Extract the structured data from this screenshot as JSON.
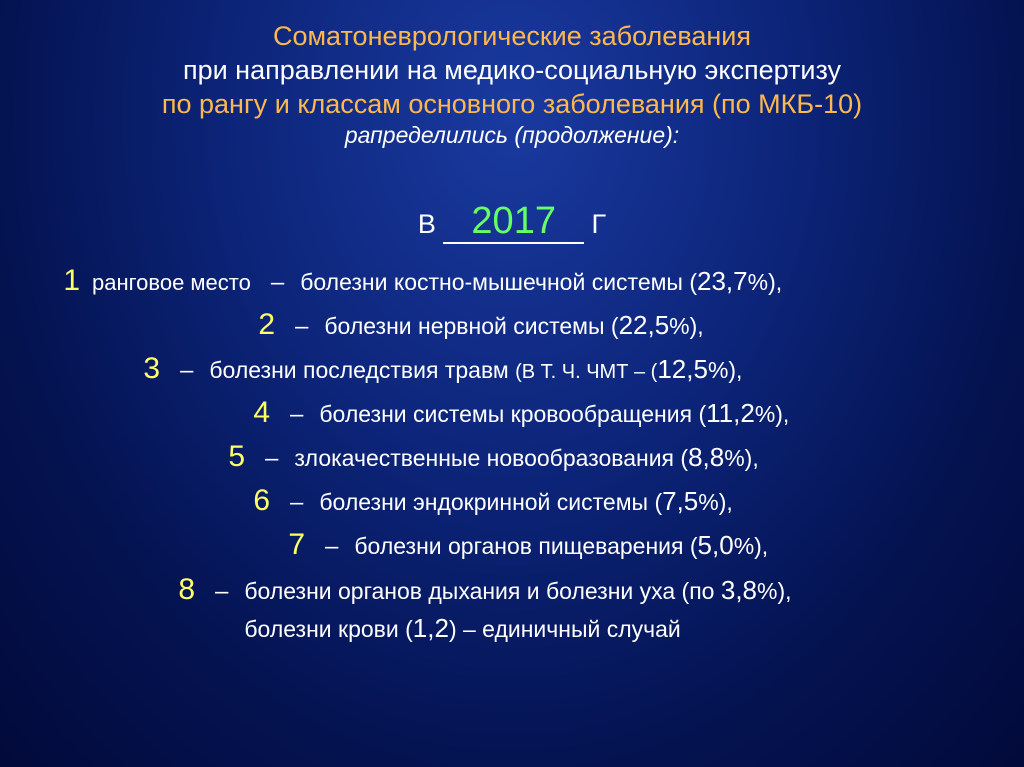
{
  "title": {
    "line1": "Соматоневрологические заболевания",
    "line2": "при направлении на медико-социальную экспертизу",
    "line3": "по рангу и классам основного заболевания (по МКБ-10)",
    "line4": "рапределились (продолжение):"
  },
  "year_prefix": "В",
  "year": "2017",
  "year_suffix": "Г",
  "rank_label": "ранговое место",
  "colors": {
    "background_center": "#1a3aa0",
    "background_edge": "#020a3a",
    "heading_accent": "#ffb84d",
    "text": "#ffffff",
    "rank_number": "#ffff66",
    "year": "#66ff66"
  },
  "ranks": [
    {
      "n": "1",
      "text_before": "болезни костно-мышечной системы  (",
      "pct": "23,7",
      "text_after": "%),"
    },
    {
      "n": "2",
      "text_before": "болезни нервной системы  (",
      "pct": "22,5",
      "text_after": "%),"
    },
    {
      "n": "3",
      "text_before": "болезни последствия травм  ",
      "small": "(В Т. Ч. ЧМТ – (",
      "pct": "12,5",
      "text_after": "%),"
    },
    {
      "n": "4",
      "text_before": "болезни системы кровообращения  (",
      "pct": "11,2",
      "text_after": "%),"
    },
    {
      "n": "5",
      "text_before": "злокачественные новообразования  (",
      "pct": "8,8",
      "text_after": "%),"
    },
    {
      "n": "6",
      "text_before": "болезни эндокринной системы  (",
      "pct": "7,5",
      "text_after": "%),"
    },
    {
      "n": "7",
      "text_before": "болезни органов пищеварения  (",
      "pct": "5,0",
      "text_after": "%),"
    },
    {
      "n": "8",
      "text_before": "болезни органов дыхания и болезни уха  (по ",
      "pct": "3,8",
      "text_after": "%),",
      "line2_before": "болезни крови (",
      "line2_pct": "1,2",
      "line2_after": ")  – единичный случай"
    }
  ]
}
